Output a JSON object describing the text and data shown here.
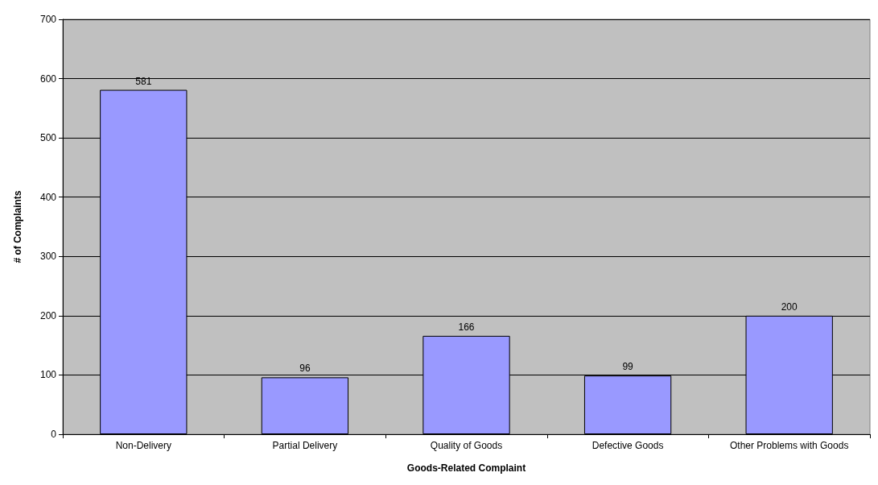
{
  "chart_data": {
    "type": "bar",
    "xlabel": "Goods-Related Complaint",
    "ylabel": "# of Complaints",
    "categories": [
      "Non-Delivery",
      "Partial Delivery",
      "Quality of Goods",
      "Defective Goods",
      "Other Problems with Goods"
    ],
    "values": [
      581,
      96,
      166,
      99,
      200
    ],
    "color": "#9999ff",
    "ylim": [
      0,
      700
    ],
    "yticks": [
      0,
      100,
      200,
      300,
      400,
      500,
      600,
      700
    ],
    "grid": "y",
    "data_labels": true
  }
}
